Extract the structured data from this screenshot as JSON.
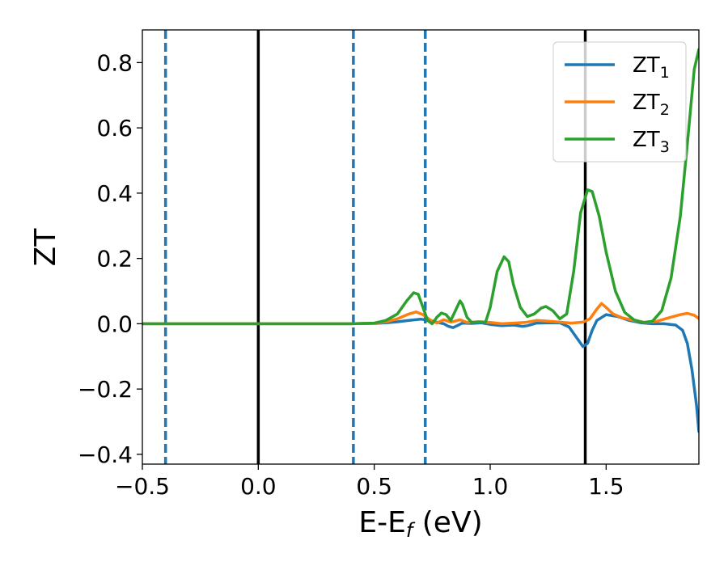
{
  "chart_data": {
    "type": "line",
    "xlabel": {
      "main": "E-E",
      "sub": "f",
      "suffix": " (eV)"
    },
    "ylabel": "ZT",
    "xlim": [
      -0.5,
      1.9
    ],
    "ylim": [
      -0.43,
      0.9
    ],
    "xticks": [
      {
        "v": -0.5,
        "label": "−0.5"
      },
      {
        "v": 0.0,
        "label": "0.0"
      },
      {
        "v": 0.5,
        "label": "0.5"
      },
      {
        "v": 1.0,
        "label": "1.0"
      },
      {
        "v": 1.5,
        "label": "1.5"
      }
    ],
    "yticks": [
      {
        "v": -0.4,
        "label": "−0.4"
      },
      {
        "v": -0.2,
        "label": "−0.2"
      },
      {
        "v": 0.0,
        "label": "0.0"
      },
      {
        "v": 0.2,
        "label": "0.2"
      },
      {
        "v": 0.4,
        "label": "0.4"
      },
      {
        "v": 0.6,
        "label": "0.6"
      },
      {
        "v": 0.8,
        "label": "0.8"
      }
    ],
    "grid": false,
    "legend_position": "top-right",
    "vlines": [
      {
        "x": -0.4,
        "style": "dashed",
        "color": "#1f77b4"
      },
      {
        "x": 0.0,
        "style": "solid",
        "color": "#000000"
      },
      {
        "x": 0.41,
        "style": "dashed",
        "color": "#1f77b4"
      },
      {
        "x": 0.72,
        "style": "dashed",
        "color": "#1f77b4"
      },
      {
        "x": 1.41,
        "style": "solid",
        "color": "#000000"
      }
    ],
    "series": [
      {
        "name": "ZT",
        "sub": "1",
        "color": "#1f77b4",
        "points": [
          [
            -0.5,
            0.0
          ],
          [
            0.4,
            0.0
          ],
          [
            0.5,
            0.001
          ],
          [
            0.55,
            0.003
          ],
          [
            0.6,
            0.006
          ],
          [
            0.65,
            0.01
          ],
          [
            0.7,
            0.014
          ],
          [
            0.74,
            0.01
          ],
          [
            0.78,
            0.003
          ],
          [
            0.8,
            0.0
          ],
          [
            0.82,
            -0.008
          ],
          [
            0.84,
            -0.012
          ],
          [
            0.86,
            -0.005
          ],
          [
            0.88,
            0.002
          ],
          [
            0.92,
            0.001
          ],
          [
            0.96,
            0.003
          ],
          [
            1.0,
            -0.002
          ],
          [
            1.05,
            -0.006
          ],
          [
            1.1,
            -0.004
          ],
          [
            1.14,
            -0.008
          ],
          [
            1.16,
            -0.006
          ],
          [
            1.2,
            0.002
          ],
          [
            1.25,
            0.003
          ],
          [
            1.3,
            0.003
          ],
          [
            1.34,
            -0.01
          ],
          [
            1.37,
            -0.04
          ],
          [
            1.4,
            -0.07
          ],
          [
            1.42,
            -0.06
          ],
          [
            1.44,
            -0.02
          ],
          [
            1.46,
            0.01
          ],
          [
            1.5,
            0.028
          ],
          [
            1.55,
            0.022
          ],
          [
            1.6,
            0.01
          ],
          [
            1.65,
            0.003
          ],
          [
            1.7,
            0.0
          ],
          [
            1.75,
            0.0
          ],
          [
            1.8,
            -0.004
          ],
          [
            1.83,
            -0.02
          ],
          [
            1.85,
            -0.06
          ],
          [
            1.87,
            -0.14
          ],
          [
            1.89,
            -0.25
          ],
          [
            1.9,
            -0.33
          ]
        ]
      },
      {
        "name": "ZT",
        "sub": "2",
        "color": "#ff7f0e",
        "points": [
          [
            -0.5,
            0.0
          ],
          [
            0.4,
            0.0
          ],
          [
            0.5,
            0.002
          ],
          [
            0.55,
            0.006
          ],
          [
            0.6,
            0.015
          ],
          [
            0.65,
            0.03
          ],
          [
            0.68,
            0.036
          ],
          [
            0.71,
            0.028
          ],
          [
            0.74,
            0.012
          ],
          [
            0.77,
            0.002
          ],
          [
            0.8,
            0.012
          ],
          [
            0.83,
            0.005
          ],
          [
            0.87,
            0.012
          ],
          [
            0.9,
            0.004
          ],
          [
            0.95,
            0.006
          ],
          [
            1.0,
            0.004
          ],
          [
            1.05,
            0.0
          ],
          [
            1.1,
            0.002
          ],
          [
            1.15,
            0.004
          ],
          [
            1.2,
            0.01
          ],
          [
            1.25,
            0.008
          ],
          [
            1.3,
            0.005
          ],
          [
            1.35,
            0.002
          ],
          [
            1.4,
            0.005
          ],
          [
            1.43,
            0.015
          ],
          [
            1.46,
            0.045
          ],
          [
            1.48,
            0.062
          ],
          [
            1.5,
            0.05
          ],
          [
            1.53,
            0.03
          ],
          [
            1.57,
            0.018
          ],
          [
            1.62,
            0.01
          ],
          [
            1.67,
            0.004
          ],
          [
            1.72,
            0.008
          ],
          [
            1.77,
            0.018
          ],
          [
            1.82,
            0.028
          ],
          [
            1.85,
            0.032
          ],
          [
            1.88,
            0.026
          ],
          [
            1.9,
            0.016
          ]
        ]
      },
      {
        "name": "ZT",
        "sub": "3",
        "color": "#2ca02c",
        "points": [
          [
            -0.5,
            0.0
          ],
          [
            0.4,
            0.0
          ],
          [
            0.5,
            0.002
          ],
          [
            0.55,
            0.01
          ],
          [
            0.6,
            0.03
          ],
          [
            0.64,
            0.07
          ],
          [
            0.67,
            0.095
          ],
          [
            0.69,
            0.09
          ],
          [
            0.71,
            0.05
          ],
          [
            0.73,
            0.01
          ],
          [
            0.75,
            0.0
          ],
          [
            0.77,
            0.02
          ],
          [
            0.79,
            0.033
          ],
          [
            0.81,
            0.028
          ],
          [
            0.83,
            0.01
          ],
          [
            0.85,
            0.04
          ],
          [
            0.87,
            0.07
          ],
          [
            0.88,
            0.06
          ],
          [
            0.9,
            0.02
          ],
          [
            0.92,
            0.004
          ],
          [
            0.95,
            0.006
          ],
          [
            0.98,
            0.005
          ],
          [
            1.0,
            0.05
          ],
          [
            1.03,
            0.16
          ],
          [
            1.06,
            0.205
          ],
          [
            1.08,
            0.19
          ],
          [
            1.1,
            0.12
          ],
          [
            1.13,
            0.05
          ],
          [
            1.16,
            0.022
          ],
          [
            1.19,
            0.03
          ],
          [
            1.22,
            0.048
          ],
          [
            1.24,
            0.053
          ],
          [
            1.27,
            0.04
          ],
          [
            1.3,
            0.015
          ],
          [
            1.33,
            0.03
          ],
          [
            1.36,
            0.16
          ],
          [
            1.39,
            0.34
          ],
          [
            1.42,
            0.41
          ],
          [
            1.44,
            0.405
          ],
          [
            1.47,
            0.33
          ],
          [
            1.5,
            0.22
          ],
          [
            1.54,
            0.1
          ],
          [
            1.58,
            0.035
          ],
          [
            1.62,
            0.012
          ],
          [
            1.66,
            0.004
          ],
          [
            1.7,
            0.008
          ],
          [
            1.74,
            0.04
          ],
          [
            1.78,
            0.14
          ],
          [
            1.82,
            0.33
          ],
          [
            1.85,
            0.55
          ],
          [
            1.88,
            0.78
          ],
          [
            1.9,
            0.84
          ]
        ]
      }
    ]
  }
}
